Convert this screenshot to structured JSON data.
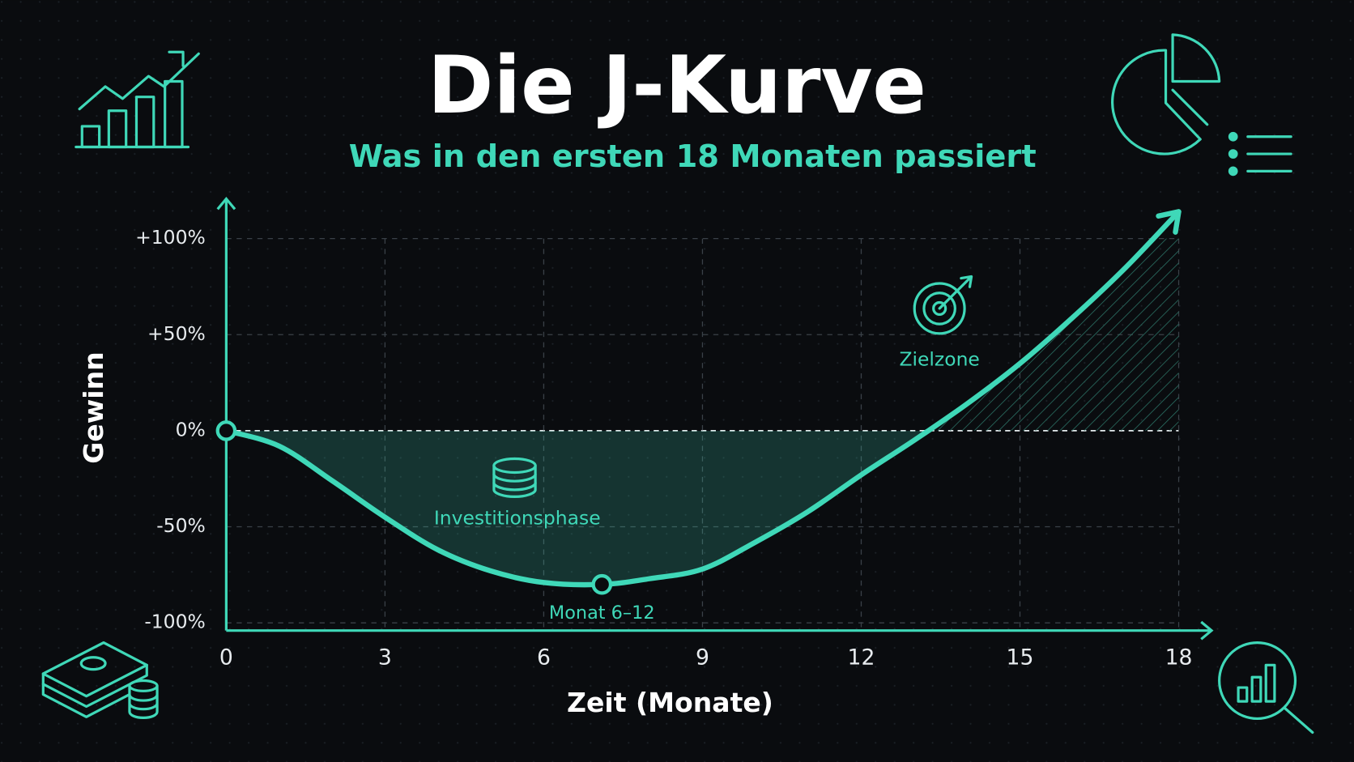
{
  "chart_data": {
    "type": "line",
    "title": "Die J-Kurve",
    "subtitle": "Was in den ersten 18 Monaten passiert",
    "x_label": "Zeit (Monate)",
    "y_label": "Gewinn",
    "annotations": [
      "Investitionsphase",
      "Monat 6–12",
      "Zielzone"
    ],
    "x": [
      0,
      1,
      2,
      3,
      4,
      5,
      6,
      7.1,
      8,
      9,
      10,
      11,
      12,
      13,
      14,
      15,
      16,
      17,
      18
    ],
    "series": [
      {
        "name": "J-Kurve",
        "color": "#3fd8b8",
        "values": [
          0,
          -8,
          -26,
          -45,
          -62,
          -73,
          -79,
          -80,
          -77,
          -72,
          -58,
          -42,
          -23,
          -5,
          14,
          35,
          59,
          85,
          114
        ]
      }
    ],
    "xlim": [
      0,
      18
    ],
    "xticks": [
      0,
      3,
      6,
      9,
      12,
      15,
      18
    ],
    "ylim": [
      -104,
      118
    ],
    "yticks": [
      {
        "value": -100,
        "label": "-100%"
      },
      {
        "value": -50,
        "label": "-50%"
      },
      {
        "value": 0,
        "label": "0%"
      },
      {
        "value": 50,
        "label": "+50%"
      },
      {
        "value": 100,
        "label": "+100%"
      }
    ],
    "grid": true
  }
}
